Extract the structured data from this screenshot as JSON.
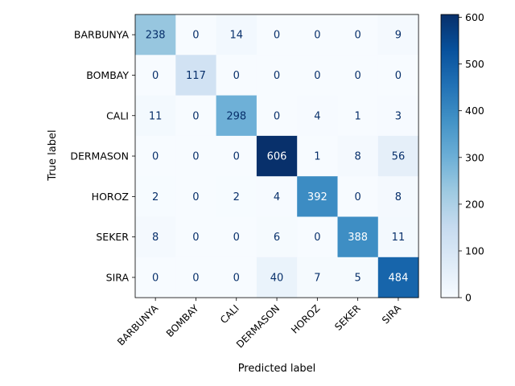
{
  "chart_data": {
    "type": "heatmap",
    "title": "",
    "xlabel": "Predicted label",
    "ylabel": "True label",
    "x_categories": [
      "BARBUNYA",
      "BOMBAY",
      "CALI",
      "DERMASON",
      "HOROZ",
      "SEKER",
      "SIRA"
    ],
    "y_categories": [
      "BARBUNYA",
      "BOMBAY",
      "CALI",
      "DERMASON",
      "HOROZ",
      "SEKER",
      "SIRA"
    ],
    "values": [
      [
        238,
        0,
        14,
        0,
        0,
        0,
        9
      ],
      [
        0,
        117,
        0,
        0,
        0,
        0,
        0
      ],
      [
        11,
        0,
        298,
        0,
        4,
        1,
        3
      ],
      [
        0,
        0,
        0,
        606,
        1,
        8,
        56
      ],
      [
        2,
        0,
        2,
        4,
        392,
        0,
        8
      ],
      [
        8,
        0,
        0,
        6,
        0,
        388,
        11
      ],
      [
        0,
        0,
        0,
        40,
        7,
        5,
        484
      ]
    ],
    "colormap": "Blues",
    "color_range": [
      0,
      606
    ],
    "colorbar_ticks": [
      0,
      100,
      200,
      300,
      400,
      500,
      600
    ],
    "colorbar_tick_labels": [
      "0",
      "100",
      "200",
      "300",
      "400",
      "500",
      "600"
    ],
    "x_tick_rotation": 45,
    "grid": false
  }
}
